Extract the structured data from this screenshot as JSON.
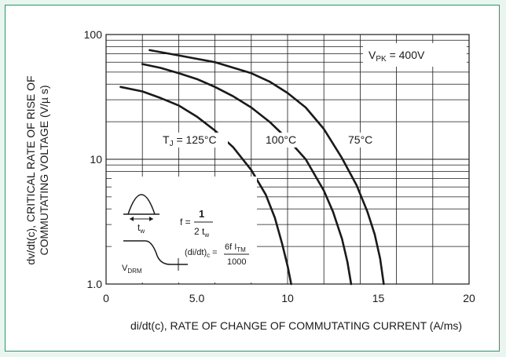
{
  "colors": {
    "border": "#1f9b6e",
    "background": "#e9f5ef",
    "ink": "#1a1a1a",
    "grid": "#1a1a1a"
  },
  "chart_data": {
    "type": "line",
    "xlabel": "di/dt(c), RATE OF CHANGE OF COMMUTATING CURRENT (A/ms)",
    "ylabel_line1": "dv/dt(c), CRITICAL RATE OF RISE OF",
    "ylabel_line2": "COMMUTATING VOLTAGE (V/µ s)",
    "x_ticks": [
      "0",
      "5.0",
      "10",
      "15",
      "20"
    ],
    "xlim": [
      0,
      20
    ],
    "y_ticks": [
      "1.0",
      "10",
      "100"
    ],
    "ylim": [
      1,
      100
    ],
    "y_scale": "log",
    "grid": true,
    "condition_label": "V",
    "condition_sub": "PK",
    "condition_value": " = 400V",
    "series": [
      {
        "name": "T_J = 125°C",
        "x": [
          0.8,
          2.0,
          3.0,
          4.0,
          5.0,
          6.0,
          7.0,
          8.0,
          8.8,
          9.3,
          9.7,
          10.0,
          10.2
        ],
        "y": [
          38,
          35,
          31,
          27,
          22,
          17,
          12.5,
          8.2,
          5.2,
          3.4,
          2.1,
          1.4,
          1.0
        ]
      },
      {
        "name": "100°C",
        "x": [
          2.0,
          3.0,
          4.0,
          5.0,
          6.0,
          7.0,
          8.0,
          9.0,
          10.0,
          11.0,
          12.0,
          12.5,
          13.0,
          13.3,
          13.5
        ],
        "y": [
          58,
          54,
          49,
          44,
          38,
          32,
          26,
          20,
          14.5,
          10,
          5.6,
          3.8,
          2.3,
          1.5,
          1.0
        ]
      },
      {
        "name": "75°C",
        "x": [
          2.4,
          4.0,
          6.0,
          8.0,
          9.0,
          10.0,
          11.0,
          12.0,
          13.0,
          13.8,
          14.4,
          14.8,
          15.1,
          15.3
        ],
        "y": [
          75,
          68,
          60,
          49,
          42,
          34,
          26,
          17.5,
          10.2,
          6.2,
          3.8,
          2.5,
          1.6,
          1.0
        ]
      }
    ],
    "curve_labels": [
      {
        "main": "T",
        "sub": "J",
        "rest": " = 125°C"
      },
      {
        "main": "100°C",
        "sub": "",
        "rest": ""
      },
      {
        "main": "75°C",
        "sub": "",
        "rest": ""
      }
    ],
    "inset": {
      "f_label": "f =",
      "f_num": "1",
      "f_den": "2 t",
      "f_den_sub": "w",
      "tw_label": "t",
      "tw_sub": "w",
      "vdrm": "V",
      "vdrm_sub": "DRM",
      "didt_label": "(di/dt)",
      "didt_sub": "c",
      "didt_eq": " =",
      "didt_num": "6f I",
      "didt_num_sub": "TM",
      "didt_den": "1000"
    }
  }
}
